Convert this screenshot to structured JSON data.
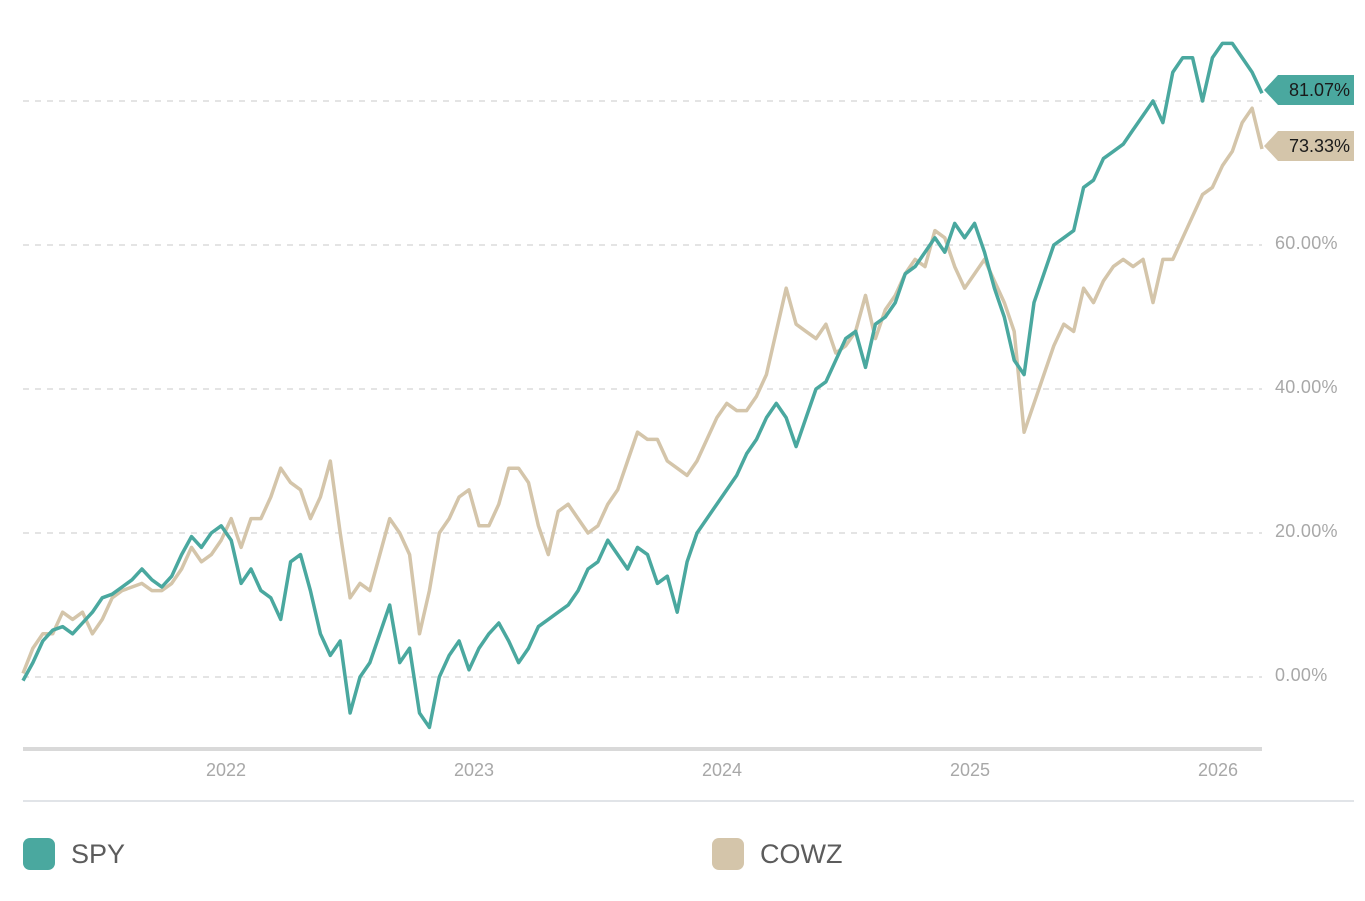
{
  "chart_data": {
    "type": "line",
    "title": "",
    "xlabel": "",
    "ylabel": "",
    "x_ticks": [
      "2022",
      "2023",
      "2024",
      "2025",
      "2026"
    ],
    "y_ticks": [
      "0.00%",
      "20.00%",
      "40.00%",
      "60.00%"
    ],
    "ylim": [
      -10,
      92
    ],
    "grid": true,
    "legend_position": "bottom",
    "x": [
      2021.18,
      2021.22,
      2021.26,
      2021.3,
      2021.34,
      2021.38,
      2021.42,
      2021.46,
      2021.5,
      2021.54,
      2021.58,
      2021.62,
      2021.66,
      2021.7,
      2021.74,
      2021.78,
      2021.82,
      2021.86,
      2021.9,
      2021.94,
      2021.98,
      2022.02,
      2022.06,
      2022.1,
      2022.14,
      2022.18,
      2022.22,
      2022.26,
      2022.3,
      2022.34,
      2022.38,
      2022.42,
      2022.46,
      2022.5,
      2022.54,
      2022.58,
      2022.62,
      2022.66,
      2022.7,
      2022.74,
      2022.78,
      2022.82,
      2022.86,
      2022.9,
      2022.94,
      2022.98,
      2023.02,
      2023.06,
      2023.1,
      2023.14,
      2023.18,
      2023.22,
      2023.26,
      2023.3,
      2023.34,
      2023.38,
      2023.42,
      2023.46,
      2023.5,
      2023.54,
      2023.58,
      2023.62,
      2023.66,
      2023.7,
      2023.74,
      2023.78,
      2023.82,
      2023.86,
      2023.9,
      2023.94,
      2023.98,
      2024.02,
      2024.06,
      2024.1,
      2024.14,
      2024.18,
      2024.22,
      2024.26,
      2024.3,
      2024.34,
      2024.38,
      2024.42,
      2024.46,
      2024.5,
      2024.54,
      2024.58,
      2024.62,
      2024.66,
      2024.7,
      2024.74,
      2024.78,
      2024.82,
      2024.86,
      2024.9,
      2024.94,
      2024.98,
      2025.02,
      2025.06,
      2025.1,
      2025.14,
      2025.18,
      2025.22,
      2025.26,
      2025.3,
      2025.34,
      2025.38,
      2025.42,
      2025.46,
      2025.5,
      2025.54,
      2025.58,
      2025.62,
      2025.66,
      2025.7,
      2025.74,
      2025.78,
      2025.82,
      2025.86,
      2025.9,
      2025.94,
      2025.98,
      2026.02,
      2026.06,
      2026.1,
      2026.14,
      2026.18
    ],
    "series": [
      {
        "name": "SPY",
        "color": "#4aa89f",
        "end_label": "81.07%",
        "values": [
          -0.5,
          2,
          5,
          6.5,
          7,
          6,
          7.5,
          9,
          11,
          11.5,
          12.5,
          13.5,
          15,
          13.5,
          12.5,
          14,
          17,
          19.5,
          18,
          20,
          21,
          19,
          13,
          15,
          12,
          11,
          8,
          16,
          17,
          12,
          6,
          3,
          5,
          -5,
          0,
          2,
          6,
          10,
          2,
          4,
          -5,
          -7,
          0,
          3,
          5,
          1,
          4,
          6,
          7.5,
          5,
          2,
          4,
          7,
          8,
          9,
          10,
          12,
          15,
          16,
          19,
          17,
          15,
          18,
          17,
          13,
          14,
          9,
          16,
          20,
          22,
          24,
          26,
          28,
          31,
          33,
          36,
          38,
          36,
          32,
          36,
          40,
          41,
          44,
          47,
          48,
          43,
          49,
          50,
          52,
          56,
          57,
          59,
          61,
          59,
          63,
          61,
          63,
          59,
          54,
          50,
          44,
          42,
          52,
          56,
          60,
          61,
          62,
          68,
          69,
          72,
          73,
          74,
          76,
          78,
          80,
          77,
          84,
          86,
          86,
          80,
          86,
          88,
          88,
          86,
          84,
          81.07
        ]
      },
      {
        "name": "COWZ",
        "color": "#d4c5aa",
        "end_label": "73.33%",
        "values": [
          0.5,
          4,
          6,
          6,
          9,
          8,
          9,
          6,
          8,
          11,
          12,
          12.5,
          13,
          12,
          12,
          13,
          15,
          18,
          16,
          17,
          19,
          22,
          18,
          22,
          22,
          25,
          29,
          27,
          26,
          22,
          25,
          30,
          20,
          11,
          13,
          12,
          17,
          22,
          20,
          17,
          6,
          12,
          20,
          22,
          25,
          26,
          21,
          21,
          24,
          29,
          29,
          27,
          21,
          17,
          23,
          24,
          22,
          20,
          21,
          24,
          26,
          30,
          34,
          33,
          33,
          30,
          29,
          28,
          30,
          33,
          36,
          38,
          37,
          37,
          39,
          42,
          48,
          54,
          49,
          48,
          47,
          49,
          45,
          46,
          48,
          53,
          47,
          51,
          53,
          56,
          58,
          57,
          62,
          61,
          57,
          54,
          56,
          58,
          55,
          52,
          48,
          34,
          38,
          42,
          46,
          49,
          48,
          54,
          52,
          55,
          57,
          58,
          57,
          58,
          52,
          58,
          58,
          61,
          64,
          67,
          68,
          71,
          73,
          77,
          79,
          73.33
        ]
      }
    ]
  },
  "axis": {
    "y_labels": [
      {
        "label": "60.00%",
        "value": 60
      },
      {
        "label": "40.00%",
        "value": 40
      },
      {
        "label": "20.00%",
        "value": 20
      },
      {
        "label": "0.00%",
        "value": 0
      }
    ],
    "x_labels": [
      {
        "label": "2022",
        "value": 2022
      },
      {
        "label": "2023",
        "value": 2023
      },
      {
        "label": "2024",
        "value": 2024
      },
      {
        "label": "2025",
        "value": 2025
      },
      {
        "label": "2026",
        "value": 2026
      }
    ]
  },
  "end_badges": {
    "spy": {
      "label": "81.07%",
      "color": "#4aa89f"
    },
    "cowz": {
      "label": "73.33%",
      "color": "#d4c5aa"
    }
  },
  "legend": [
    {
      "name": "SPY",
      "color": "#4aa89f"
    },
    {
      "name": "COWZ",
      "color": "#d4c5aa"
    }
  ],
  "colors": {
    "grid": "#dcdcdc",
    "axis": "#d9d9d9",
    "tick_text": "#a8a8a8",
    "divider": "#e1e4e8",
    "legend_text": "#5c5c5c"
  }
}
